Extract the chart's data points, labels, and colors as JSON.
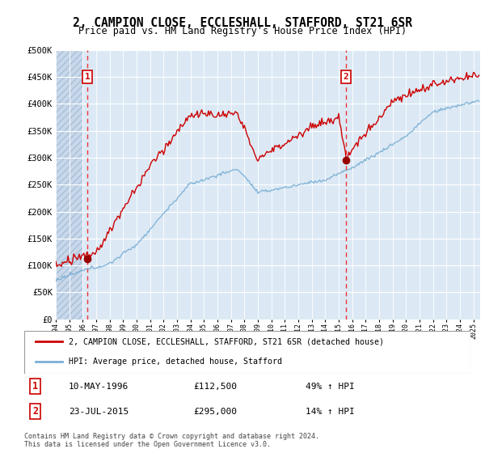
{
  "title": "2, CAMPION CLOSE, ECCLESHALL, STAFFORD, ST21 6SR",
  "subtitle": "Price paid vs. HM Land Registry's House Price Index (HPI)",
  "ylim": [
    0,
    500000
  ],
  "yticks": [
    0,
    50000,
    100000,
    150000,
    200000,
    250000,
    300000,
    350000,
    400000,
    450000,
    500000
  ],
  "ytick_labels": [
    "£0",
    "£50K",
    "£100K",
    "£150K",
    "£200K",
    "£250K",
    "£300K",
    "£350K",
    "£400K",
    "£450K",
    "£500K"
  ],
  "xmin": 1994.0,
  "xmax": 2025.5,
  "sale1_date": 1996.36,
  "sale1_price": 112500,
  "sale1_label": "1",
  "sale1_annotation": "10-MAY-1996",
  "sale1_amount": "£112,500",
  "sale1_hpi": "49% ↑ HPI",
  "sale2_date": 2015.55,
  "sale2_price": 295000,
  "sale2_label": "2",
  "sale2_annotation": "23-JUL-2015",
  "sale2_amount": "£295,000",
  "sale2_hpi": "14% ↑ HPI",
  "legend_line1": "2, CAMPION CLOSE, ECCLESHALL, STAFFORD, ST21 6SR (detached house)",
  "legend_line2": "HPI: Average price, detached house, Stafford",
  "footer": "Contains HM Land Registry data © Crown copyright and database right 2024.\nThis data is licensed under the Open Government Licence v3.0.",
  "bg_color": "#dce9f5",
  "red_line_color": "#cc0000",
  "blue_line_color": "#7bafd4",
  "sale_dot_color": "#990000",
  "vline_color": "#ee3333",
  "box_color": "#cc0000",
  "hatch_color": "#c5d5e8"
}
